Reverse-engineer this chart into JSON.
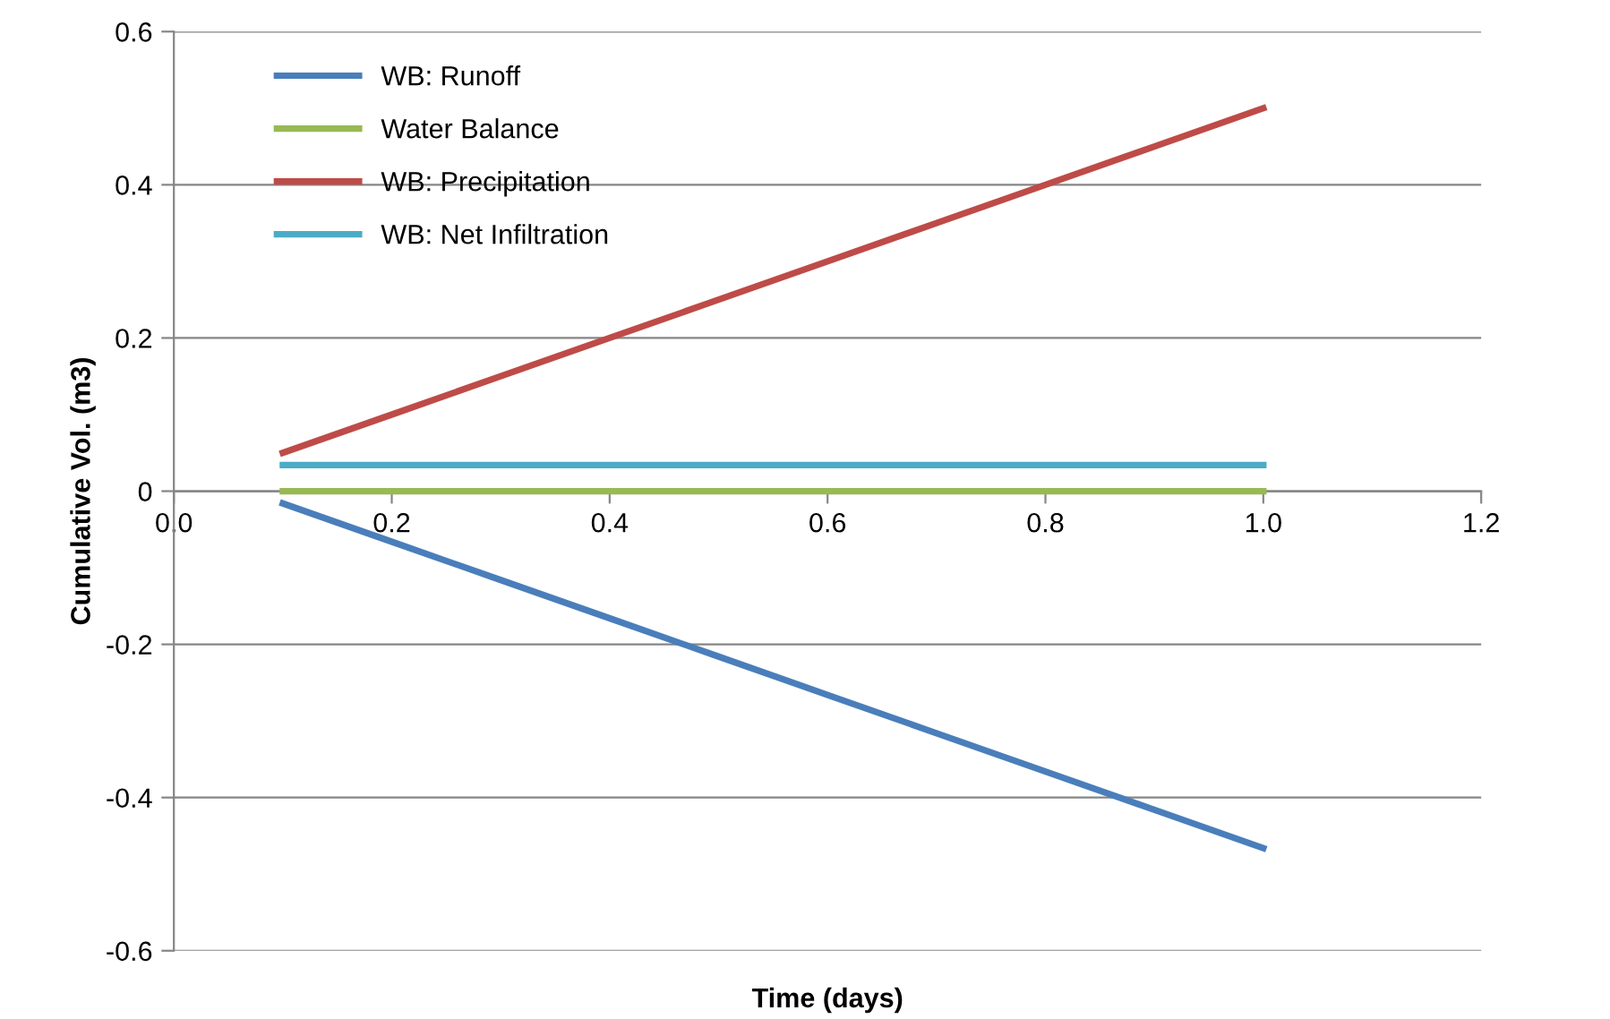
{
  "chart_data": {
    "type": "line",
    "xlabel": "Time (days)",
    "ylabel": "Cumulative Vol. (m3)",
    "x": [
      0.1,
      0.2,
      0.3,
      0.4,
      0.5,
      0.6,
      0.7,
      0.8,
      0.9,
      1.0
    ],
    "series": [
      {
        "name": "WB: Runoff",
        "color": "#4a7ebb",
        "values": [
          -0.016,
          -0.066,
          -0.116,
          -0.166,
          -0.216,
          -0.266,
          -0.316,
          -0.366,
          -0.416,
          -0.466
        ]
      },
      {
        "name": "Water Balance",
        "color": "#98b954",
        "values": [
          0,
          0,
          0,
          0,
          0,
          0,
          0,
          0,
          0,
          0
        ]
      },
      {
        "name": "WB: Precipitation",
        "color": "#be4b48",
        "values": [
          0.05,
          0.1,
          0.15,
          0.2,
          0.25,
          0.3,
          0.35,
          0.4,
          0.45,
          0.5
        ]
      },
      {
        "name": "WB: Net Infiltration",
        "color": "#4bacc6",
        "values": [
          0.034,
          0.034,
          0.034,
          0.034,
          0.034,
          0.034,
          0.034,
          0.034,
          0.034,
          0.034
        ]
      }
    ],
    "xlim": [
      0,
      1.2
    ],
    "xticks": [
      {
        "value": 0,
        "label": "0.0"
      },
      {
        "value": 0.2,
        "label": "0.2"
      },
      {
        "value": 0.4,
        "label": "0.4"
      },
      {
        "value": 0.6,
        "label": "0.6"
      },
      {
        "value": 0.8,
        "label": "0.8"
      },
      {
        "value": 1.0,
        "label": "1.0"
      },
      {
        "value": 1.2,
        "label": "1.2"
      }
    ],
    "ylim": [
      -0.6,
      0.6
    ],
    "yticks": [
      -0.6,
      -0.4,
      -0.2,
      0,
      0.2,
      0.4,
      0.6
    ],
    "grid": "y",
    "legend": "top left",
    "marker": "none",
    "line_style": "solid"
  }
}
